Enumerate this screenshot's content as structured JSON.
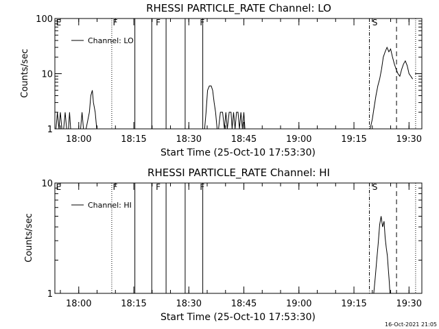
{
  "footer": {
    "timestamp": "16-Oct-2021 21:05"
  },
  "chart_data": [
    {
      "type": "line",
      "title": "RHESSI PARTICLE_RATE Channel: LO",
      "xlabel": "Start Time (25-Oct-10 17:53:30)",
      "ylabel": "Counts/sec",
      "yscale": "log",
      "ylim": [
        1,
        100
      ],
      "y_tick_labels": [
        "1",
        "10",
        "100"
      ],
      "x_unit": "minutes since 17:53:30",
      "xlim": [
        0,
        100
      ],
      "x_tick_labels": [
        "18:00",
        "18:15",
        "18:30",
        "18:45",
        "19:00",
        "19:15",
        "19:30"
      ],
      "x_tick_values": [
        6.5,
        21.5,
        36.5,
        51.5,
        66.5,
        81.5,
        96.5
      ],
      "legend": {
        "label": "Channel: LO",
        "placement": "top-left"
      },
      "flags": [
        {
          "label": "E",
          "x": 0.3
        },
        {
          "label": "F",
          "x": 15.8
        },
        {
          "label": "F",
          "x": 27.5
        },
        {
          "label": "F",
          "x": 39.5
        },
        {
          "label": "S",
          "x": 86.5
        }
      ],
      "vlines": [
        {
          "x": 15.5,
          "style": "dotted"
        },
        {
          "x": 21.8,
          "style": "solid"
        },
        {
          "x": 26.4,
          "style": "solid"
        },
        {
          "x": 30.3,
          "style": "solid"
        },
        {
          "x": 35.5,
          "style": "solid"
        },
        {
          "x": 40.3,
          "style": "solid"
        },
        {
          "x": 85.7,
          "style": "dashdot"
        },
        {
          "x": 93.1,
          "style": "dashed"
        },
        {
          "x": 98.3,
          "style": "dotted"
        }
      ],
      "series": [
        {
          "name": "Channel: LO",
          "segments": [
            {
              "x": [
                0.3,
                0.7,
                1.1,
                1.5,
                1.9,
                2.4,
                2.8,
                3.2,
                3.7,
                4.0,
                4.3
              ],
              "y": [
                1,
                2,
                1,
                2,
                1,
                1,
                2,
                1,
                1,
                2,
                1
              ]
            },
            {
              "x": [
                7.0,
                7.4,
                7.8,
                8.5,
                9.4,
                9.8,
                10.2,
                10.5,
                11.0,
                11.4
              ],
              "y": [
                1,
                2,
                1,
                1,
                2,
                4,
                5,
                3,
                2,
                1
              ]
            },
            {
              "x": [
                40.8,
                41.2,
                41.6,
                42.1,
                42.6,
                43.0,
                43.4,
                43.8,
                44.2,
                44.6,
                45.1,
                45.7,
                46.2,
                46.6,
                47.0,
                47.5,
                48.0,
                48.3,
                48.7,
                49.1,
                49.5,
                49.9,
                50.3,
                50.7,
                51.1,
                51.5,
                51.8
              ],
              "y": [
                1,
                2,
                5,
                6,
                6,
                5,
                3,
                2,
                1,
                1,
                2,
                2,
                1,
                2,
                1,
                2,
                2,
                1,
                2,
                1,
                2,
                2,
                1,
                2,
                1,
                2,
                1
              ]
            },
            {
              "x": [
                85.9,
                86.5,
                87.0,
                87.5,
                88.0,
                88.5,
                89.0,
                89.5,
                90.0,
                90.5,
                91.0,
                91.5,
                92.0,
                92.5,
                93.0,
                93.5,
                94.0,
                94.5,
                95.0,
                95.5,
                96.0,
                96.5,
                97.0,
                97.5
              ],
              "y": [
                1,
                1.5,
                2.5,
                4,
                6,
                8,
                12,
                20,
                25,
                30,
                25,
                28,
                20,
                15,
                12,
                10,
                9,
                12,
                15,
                17,
                14,
                10,
                9,
                8
              ]
            }
          ]
        }
      ]
    },
    {
      "type": "line",
      "title": "RHESSI PARTICLE_RATE Channel: HI",
      "xlabel": "Start Time (25-Oct-10 17:53:30)",
      "ylabel": "Counts/sec",
      "yscale": "log",
      "ylim": [
        1,
        10
      ],
      "y_tick_labels": [
        "1",
        "10"
      ],
      "x_unit": "minutes since 17:53:30",
      "xlim": [
        0,
        100
      ],
      "x_tick_labels": [
        "18:00",
        "18:15",
        "18:30",
        "18:45",
        "19:00",
        "19:15",
        "19:30"
      ],
      "x_tick_values": [
        6.5,
        21.5,
        36.5,
        51.5,
        66.5,
        81.5,
        96.5
      ],
      "legend": {
        "label": "Channel: HI",
        "placement": "top-left"
      },
      "flags": [
        {
          "label": "E",
          "x": 0.3
        },
        {
          "label": "F",
          "x": 15.8
        },
        {
          "label": "F",
          "x": 27.5
        },
        {
          "label": "F",
          "x": 39.5
        },
        {
          "label": "S",
          "x": 86.5
        }
      ],
      "vlines": [
        {
          "x": 15.5,
          "style": "dotted"
        },
        {
          "x": 21.8,
          "style": "solid"
        },
        {
          "x": 26.4,
          "style": "solid"
        },
        {
          "x": 30.3,
          "style": "solid"
        },
        {
          "x": 35.5,
          "style": "solid"
        },
        {
          "x": 40.3,
          "style": "solid"
        },
        {
          "x": 85.7,
          "style": "dashdot"
        },
        {
          "x": 93.1,
          "style": "dashed"
        },
        {
          "x": 98.3,
          "style": "dotted"
        }
      ],
      "series": [
        {
          "name": "Channel: HI",
          "segments": [
            {
              "x": [
                86.9,
                87.3,
                87.7,
                88.1,
                88.5,
                88.9,
                89.3,
                89.7,
                90.0,
                90.3,
                90.6,
                90.9,
                91.1,
                91.3
              ],
              "y": [
                1,
                1.4,
                2.0,
                2.8,
                4.2,
                5.0,
                4.0,
                4.5,
                3.2,
                2.6,
                2.2,
                1.6,
                1.3,
                1
              ]
            }
          ]
        }
      ]
    }
  ]
}
